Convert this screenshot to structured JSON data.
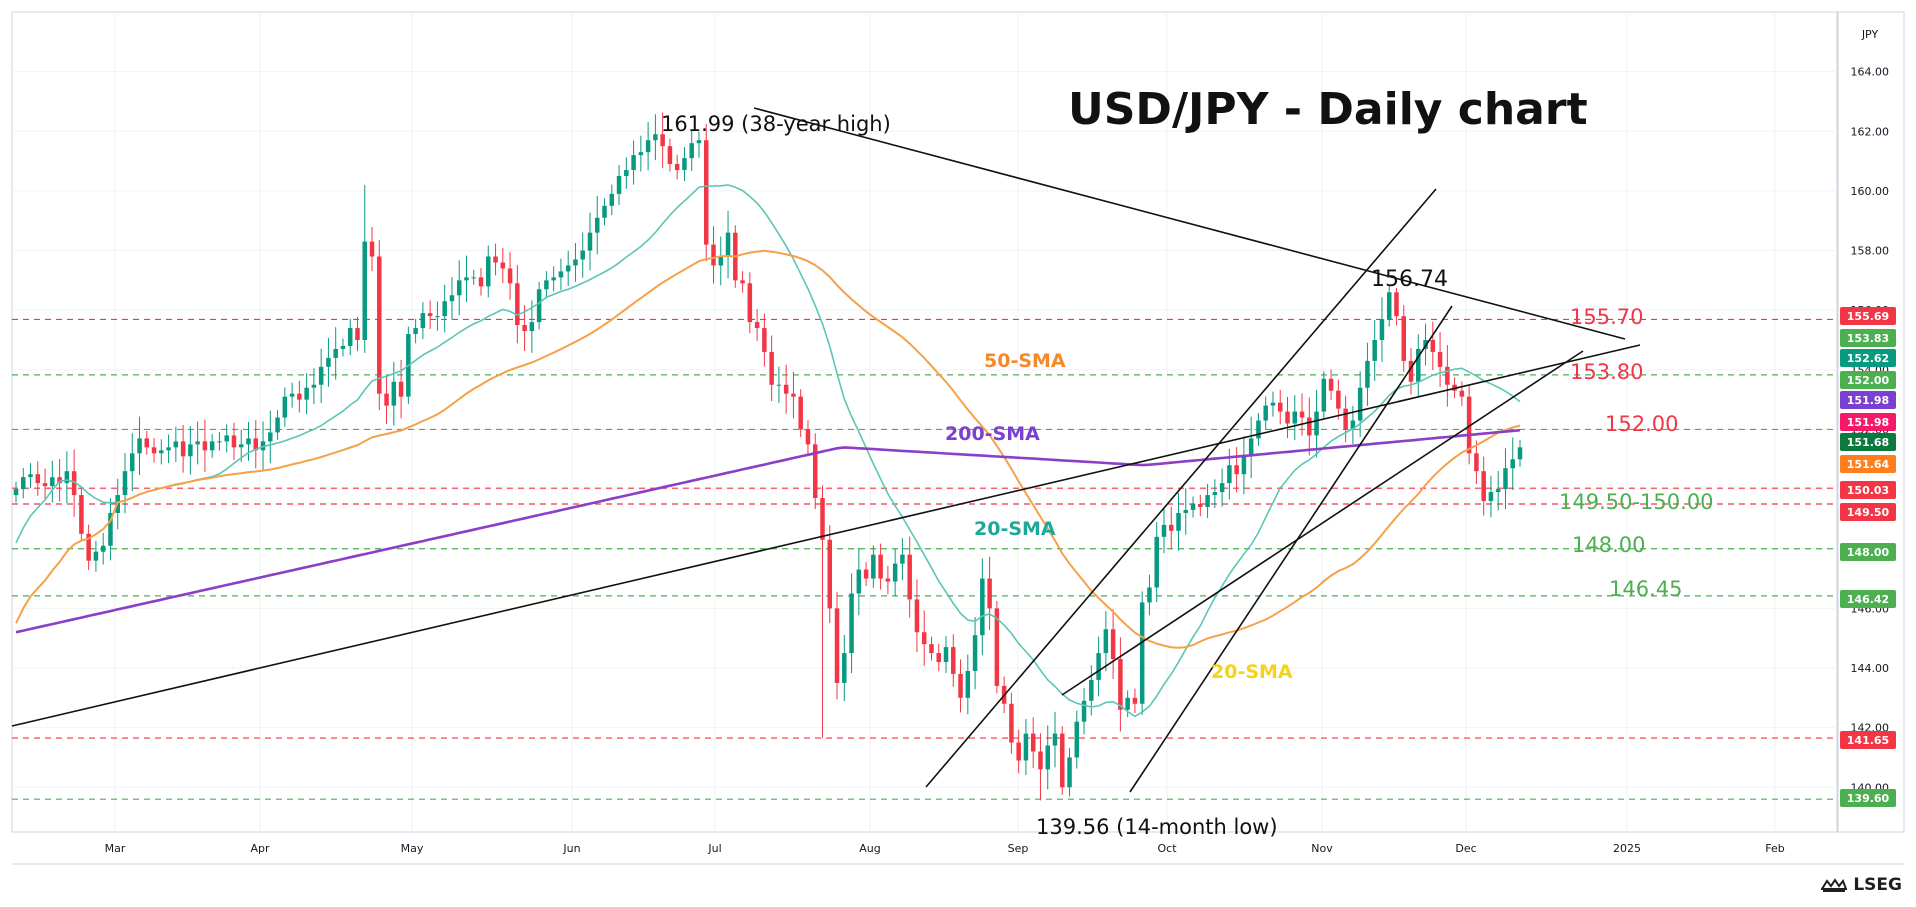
{
  "chart_data": {
    "type": "candlestick",
    "title": "USD/JPY - Daily chart",
    "y_axis_label": "JPY",
    "ylim": [
      138.5,
      166
    ],
    "y_ticks": [
      140,
      142,
      144,
      146,
      148,
      150,
      152,
      154,
      156,
      158,
      160,
      162,
      164
    ],
    "x_ticks": [
      "Mar",
      "Apr",
      "May",
      "Jun",
      "Jul",
      "Aug",
      "Sep",
      "Oct",
      "Nov",
      "Dec",
      "2025",
      "Feb"
    ],
    "grid": true,
    "series": [
      {
        "name": "Price",
        "type": "ohlc",
        "closes": [
          150.0,
          150.4,
          150.5,
          150.2,
          150.1,
          150.4,
          150.2,
          150.6,
          149.8,
          148.5,
          147.6,
          147.9,
          148.1,
          149.2,
          149.8,
          150.6,
          151.2,
          151.7,
          151.4,
          151.2,
          151.3,
          151.4,
          151.6,
          151.1,
          151.5,
          151.6,
          151.3,
          151.6,
          151.6,
          151.8,
          151.4,
          151.5,
          151.7,
          151.3,
          151.6,
          151.9,
          152.4,
          153.1,
          153.2,
          153.0,
          153.4,
          153.5,
          154.1,
          154.4,
          154.7,
          154.8,
          155.4,
          155.0,
          158.3,
          157.8,
          153.2,
          152.8,
          153.6,
          153.1,
          155.2,
          155.4,
          155.9,
          155.8,
          155.8,
          156.3,
          156.5,
          157.0,
          157.1,
          157.1,
          156.8,
          157.8,
          157.6,
          157.4,
          156.9,
          155.5,
          155.3,
          155.6,
          156.7,
          157.0,
          157.1,
          157.3,
          157.5,
          157.7,
          158.0,
          158.6,
          159.1,
          159.5,
          159.9,
          160.5,
          160.7,
          161.2,
          161.3,
          161.7,
          161.9,
          161.5,
          160.9,
          160.7,
          161.1,
          161.6,
          161.7,
          158.2,
          157.5,
          157.8,
          158.6,
          157.0,
          156.9,
          155.6,
          155.4,
          154.6,
          153.5,
          153.5,
          153.2,
          153.1,
          152.0,
          151.5,
          149.7,
          148.3,
          146.0,
          143.5,
          144.5,
          146.5,
          147.3,
          147.0,
          147.8,
          147.0,
          146.9,
          147.5,
          147.8,
          146.3,
          145.2,
          144.8,
          144.5,
          144.2,
          144.7,
          143.8,
          143.0,
          143.9,
          145.1,
          147.0,
          146.0,
          143.4,
          142.8,
          141.5,
          140.9,
          141.8,
          141.2,
          140.6,
          141.4,
          141.8,
          140.0,
          141.0,
          142.2,
          142.9,
          143.6,
          144.5,
          145.3,
          144.3,
          142.6,
          143.0,
          142.8,
          146.2,
          146.7,
          148.4,
          148.8,
          148.6,
          149.2,
          149.3,
          149.5,
          149.4,
          149.8,
          149.9,
          150.2,
          150.8,
          150.5,
          151.1,
          151.7,
          152.3,
          152.8,
          152.9,
          152.6,
          152.2,
          152.6,
          152.4,
          151.8,
          152.6,
          153.7,
          153.3,
          152.7,
          152.0,
          152.3,
          153.4,
          154.3,
          155.0,
          155.7,
          156.6,
          155.8,
          154.3,
          153.6,
          154.7,
          155.0,
          154.6,
          154.1,
          153.5,
          153.3,
          153.1,
          151.2,
          150.6,
          149.6,
          149.9,
          150.0,
          150.7,
          151.0,
          151.4
        ],
        "last": 151.68
      },
      {
        "name": "20-SMA",
        "type": "line"
      },
      {
        "name": "50-SMA",
        "type": "line"
      },
      {
        "name": "200-SMA",
        "type": "line"
      }
    ],
    "price_tags": [
      {
        "value": 155.69,
        "label": "155.69",
        "bg": "#f23645"
      },
      {
        "value": 153.83,
        "label": "153.83",
        "bg": "#4caf50"
      },
      {
        "value": 152.62,
        "label": "152.62",
        "bg": "#089981"
      },
      {
        "value": 152.0,
        "label": "152.00",
        "bg": "#4caf50"
      },
      {
        "value": 151.98,
        "label": "151.98",
        "bg": "#7b3fd1"
      },
      {
        "value": 151.98,
        "label": "151.98",
        "bg": "#f7186a"
      },
      {
        "value": 151.68,
        "label": "151.68",
        "bg": "#0b7a3e"
      },
      {
        "value": 151.64,
        "label": "151.64",
        "bg": "#ff7f1e"
      },
      {
        "value": 150.03,
        "label": "150.03",
        "bg": "#f23645"
      },
      {
        "value": 149.5,
        "label": "149.50",
        "bg": "#f23645"
      },
      {
        "value": 148.0,
        "label": "148.00",
        "bg": "#4caf50"
      },
      {
        "value": 146.42,
        "label": "146.42",
        "bg": "#4caf50"
      },
      {
        "value": 141.65,
        "label": "141.65",
        "bg": "#f23645"
      },
      {
        "value": 139.6,
        "label": "139.60",
        "bg": "#4caf50"
      }
    ],
    "horizontal_levels": [
      {
        "value": 155.69,
        "color": "#f23645"
      },
      {
        "value": 153.83,
        "color": "#4caf50"
      },
      {
        "value": 152.0,
        "color": "#4caf50"
      },
      {
        "value": 150.03,
        "color": "#f23645"
      },
      {
        "value": 149.5,
        "color": "#f23645"
      },
      {
        "value": 148.0,
        "color": "#4caf50"
      },
      {
        "value": 146.42,
        "color": "#4caf50"
      },
      {
        "value": 141.65,
        "color": "#f23645"
      },
      {
        "value": 139.6,
        "color": "#4caf50"
      }
    ],
    "annotations": [
      {
        "text": "161.99 (38-year high)",
        "color": "#111111"
      },
      {
        "text": "156.74",
        "color": "#111111"
      },
      {
        "text": "139.56 (14-month low)",
        "color": "#111111"
      },
      {
        "text": "155.70",
        "color": "#f23645"
      },
      {
        "text": "153.80",
        "color": "#f23645"
      },
      {
        "text": "152.00",
        "color": "#f23645"
      },
      {
        "text": "149.50-150.00",
        "color": "#4caf50"
      },
      {
        "text": "148.00",
        "color": "#4caf50"
      },
      {
        "text": "146.45",
        "color": "#4caf50"
      },
      {
        "text": "50-SMA",
        "color": "#f5892a"
      },
      {
        "text": "200-SMA",
        "color": "#7b3fd1"
      },
      {
        "text": "20-SMA",
        "color": "#1fa89a"
      },
      {
        "text": "20-SMA",
        "color": "#f5d31a"
      }
    ],
    "colors": {
      "up": "#089981",
      "down": "#f23645",
      "sma20": "#5cc6b6",
      "sma50": "#f5a14a",
      "sma200": "#8a3fc6",
      "trend": "#111111"
    }
  },
  "brand": {
    "name": "LSEG"
  }
}
